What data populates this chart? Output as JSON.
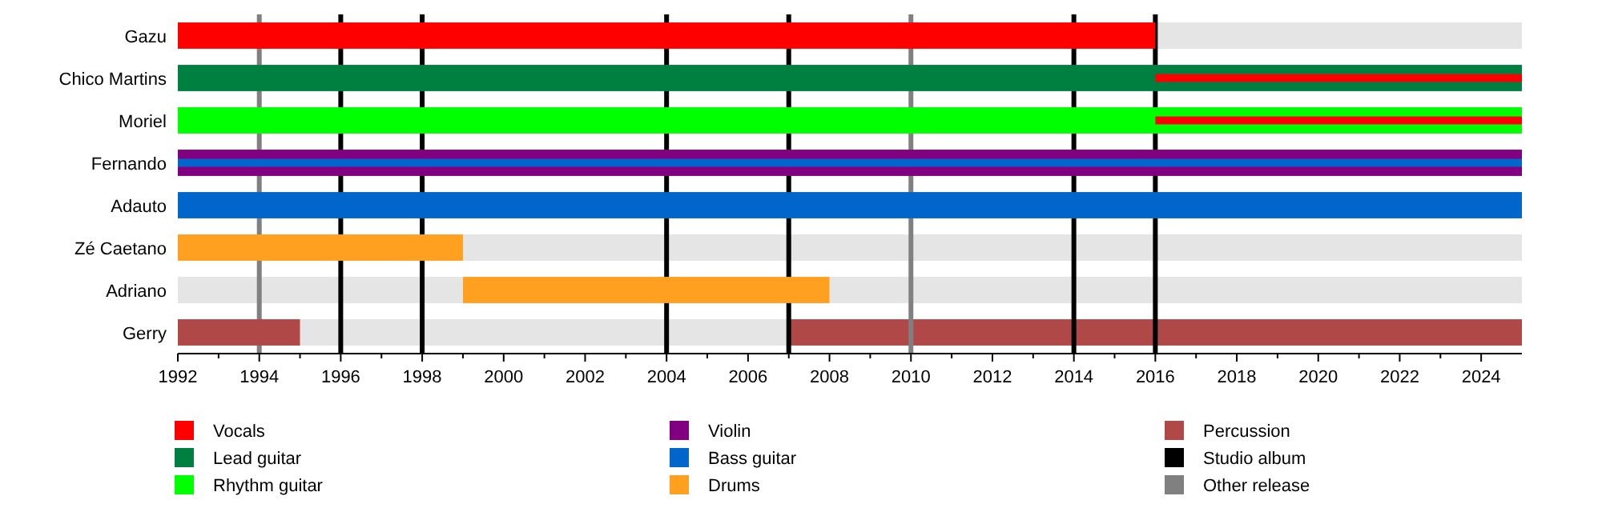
{
  "chart_data": {
    "type": "bar",
    "orientation": "horizontal",
    "categories": [
      "Gazu",
      "Chico Martins",
      "Moriel",
      "Fernando",
      "Adauto",
      "Zé Caetano",
      "Adriano",
      "Gerry"
    ],
    "series": [
      {
        "color": "#e5e5e5",
        "base": [
          2016,
          null,
          null,
          null,
          null,
          1999,
          1992,
          1995
        ],
        "values": [
          9,
          null,
          null,
          null,
          null,
          26,
          7,
          12
        ]
      },
      {
        "color": "#e5e5e5",
        "base": [
          null,
          null,
          null,
          null,
          null,
          null,
          2008,
          null
        ],
        "values": [
          null,
          null,
          null,
          null,
          null,
          null,
          17,
          null
        ]
      },
      {
        "name": "Vocals",
        "color": "#ff0000",
        "base": [
          1992,
          2016,
          2016,
          null,
          null,
          null,
          null,
          null
        ],
        "values": [
          24,
          9,
          9,
          null,
          null,
          null,
          null,
          null
        ]
      },
      {
        "name": "Lead guitar",
        "color": "#008040",
        "base": [
          null,
          1992,
          null,
          null,
          null,
          null,
          null,
          null
        ],
        "values": [
          null,
          33,
          null,
          null,
          null,
          null,
          null,
          null
        ]
      },
      {
        "name": "Rhythm guitar",
        "color": "#00ff00",
        "base": [
          null,
          null,
          1992,
          null,
          null,
          null,
          null,
          null
        ],
        "values": [
          null,
          null,
          33,
          null,
          null,
          null,
          null,
          null
        ]
      },
      {
        "name": "Violin",
        "color": "#800080",
        "base": [
          null,
          null,
          null,
          1992,
          null,
          null,
          null,
          null
        ],
        "values": [
          null,
          null,
          null,
          33,
          null,
          null,
          null,
          null
        ]
      },
      {
        "name": "Bass guitar",
        "color": "#0066cc",
        "base": [
          null,
          null,
          null,
          1992,
          1992,
          null,
          null,
          null
        ],
        "values": [
          null,
          null,
          null,
          33,
          33,
          null,
          null,
          null
        ]
      },
      {
        "name": "Drums",
        "color": "#ffa020",
        "base": [
          null,
          null,
          null,
          null,
          null,
          1992,
          1999,
          null
        ],
        "values": [
          null,
          null,
          null,
          null,
          null,
          7,
          9,
          null
        ]
      },
      {
        "name": "Percussion",
        "color": "#b04848",
        "base": [
          null,
          null,
          null,
          null,
          null,
          null,
          null,
          1992
        ],
        "values": [
          null,
          null,
          null,
          null,
          null,
          null,
          null,
          3
        ]
      },
      {
        "color": "#b04848",
        "base": [
          null,
          null,
          null,
          null,
          null,
          null,
          null,
          2007
        ],
        "values": [
          null,
          null,
          null,
          null,
          null,
          null,
          null,
          18
        ]
      }
    ],
    "ref_lines": [
      {
        "axis": "x",
        "value": 1996,
        "label": "Studio album",
        "color": "#000000"
      },
      {
        "axis": "x",
        "value": 1998,
        "color": "#000000"
      },
      {
        "axis": "x",
        "value": 2004,
        "color": "#000000"
      },
      {
        "axis": "x",
        "value": 2007,
        "color": "#000000"
      },
      {
        "axis": "x",
        "value": 2014,
        "color": "#000000"
      },
      {
        "axis": "x",
        "value": 2016,
        "color": "#000000"
      },
      {
        "axis": "x",
        "value": 1994,
        "label": "Other release",
        "color": "#808080"
      },
      {
        "axis": "x",
        "value": 2010,
        "color": "#808080"
      }
    ],
    "xlim": [
      1992,
      2025
    ],
    "xticks": [
      1992,
      {
        "value": 1993,
        "label": null
      },
      1994,
      {
        "value": 1995,
        "label": null
      },
      1996,
      {
        "value": 1997,
        "label": null
      },
      1998,
      {
        "value": 1999,
        "label": null
      },
      2000,
      {
        "value": 2001,
        "label": null
      },
      2002,
      {
        "value": 2003,
        "label": null
      },
      2004,
      {
        "value": 2005,
        "label": null
      },
      2006,
      {
        "value": 2007,
        "label": null
      },
      2008,
      {
        "value": 2009,
        "label": null
      },
      2010,
      {
        "value": 2011,
        "label": null
      },
      2012,
      {
        "value": 2013,
        "label": null
      },
      2014,
      {
        "value": 2015,
        "label": null
      },
      2016,
      {
        "value": 2017,
        "label": null
      },
      2018,
      {
        "value": 2019,
        "label": null
      },
      2020,
      {
        "value": 2021,
        "label": null
      },
      2022,
      {
        "value": 2023,
        "label": null
      },
      2024
    ],
    "legend": "bottom",
    "grid": false
  }
}
